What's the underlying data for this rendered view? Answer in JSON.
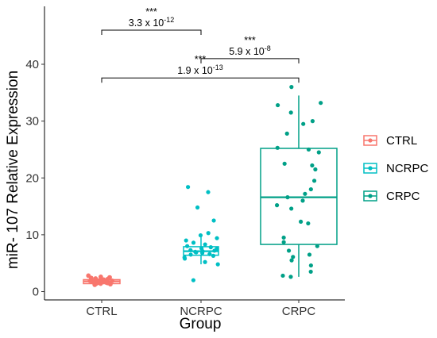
{
  "chart_data": {
    "type": "box",
    "title": "",
    "xlabel": "Group",
    "ylabel": "miR- 107 Relative Expression",
    "ylim": [
      -0.5,
      48
    ],
    "yticks": [
      0,
      10,
      20,
      30,
      40
    ],
    "categories": [
      "CTRL",
      "NCRPC",
      "CRPC"
    ],
    "legend": {
      "position": "right",
      "title": "",
      "entries": [
        "CTRL",
        "NCRPC",
        "CRPC"
      ]
    },
    "grid": false,
    "colors": {
      "CTRL": "#F8766D",
      "NCRPC": "#00BFC4",
      "CRPC": "#00A087"
    },
    "boxes": [
      {
        "name": "CTRL",
        "min": 1.2,
        "q1": 1.4,
        "median": 1.8,
        "q3": 2.1,
        "max": 2.6
      },
      {
        "name": "NCRPC",
        "min": 4.8,
        "q1": 6.4,
        "median": 7.1,
        "q3": 7.9,
        "max": 9.8
      },
      {
        "name": "CRPC",
        "min": 2.6,
        "q1": 8.3,
        "median": 16.6,
        "q3": 25.2,
        "max": 34.5
      }
    ],
    "points": [
      {
        "name": "CTRL",
        "values": [
          1.2,
          1.3,
          1.4,
          1.4,
          1.5,
          1.5,
          1.6,
          1.6,
          1.7,
          1.7,
          1.8,
          1.8,
          1.8,
          1.9,
          1.9,
          2.0,
          2.0,
          2.1,
          2.1,
          2.2,
          2.3,
          2.4,
          2.5,
          2.6,
          2.8
        ]
      },
      {
        "name": "NCRPC",
        "values": [
          2.0,
          4.8,
          5.2,
          5.8,
          6.0,
          6.3,
          6.5,
          6.6,
          6.8,
          6.9,
          7.0,
          7.1,
          7.2,
          7.3,
          7.5,
          7.6,
          7.8,
          8.0,
          8.3,
          8.6,
          9.0,
          9.4,
          9.9,
          10.3,
          12.5,
          14.8,
          17.5,
          18.4
        ]
      },
      {
        "name": "CRPC",
        "values": [
          2.6,
          2.8,
          3.5,
          4.6,
          5.5,
          6.1,
          6.5,
          7.2,
          8.0,
          8.7,
          9.5,
          12.0,
          12.3,
          14.6,
          15.2,
          16.0,
          16.6,
          17.2,
          18.0,
          19.5,
          21.5,
          22.2,
          22.5,
          24.5,
          25.0,
          25.3,
          27.8,
          29.5,
          30.0,
          31.5,
          32.8,
          33.2,
          36.0
        ]
      }
    ],
    "annotations": [
      {
        "from": "CTRL",
        "to": "NCRPC",
        "stars": "***",
        "p_base": "3.3 x 10",
        "p_exp": "-12"
      },
      {
        "from": "NCRPC",
        "to": "CRPC",
        "stars": "***",
        "p_base": "5.9 x 10",
        "p_exp": "-8"
      },
      {
        "from": "CTRL",
        "to": "CRPC",
        "stars": "***",
        "p_base": "1.9 x 10",
        "p_exp": "-13"
      }
    ]
  }
}
